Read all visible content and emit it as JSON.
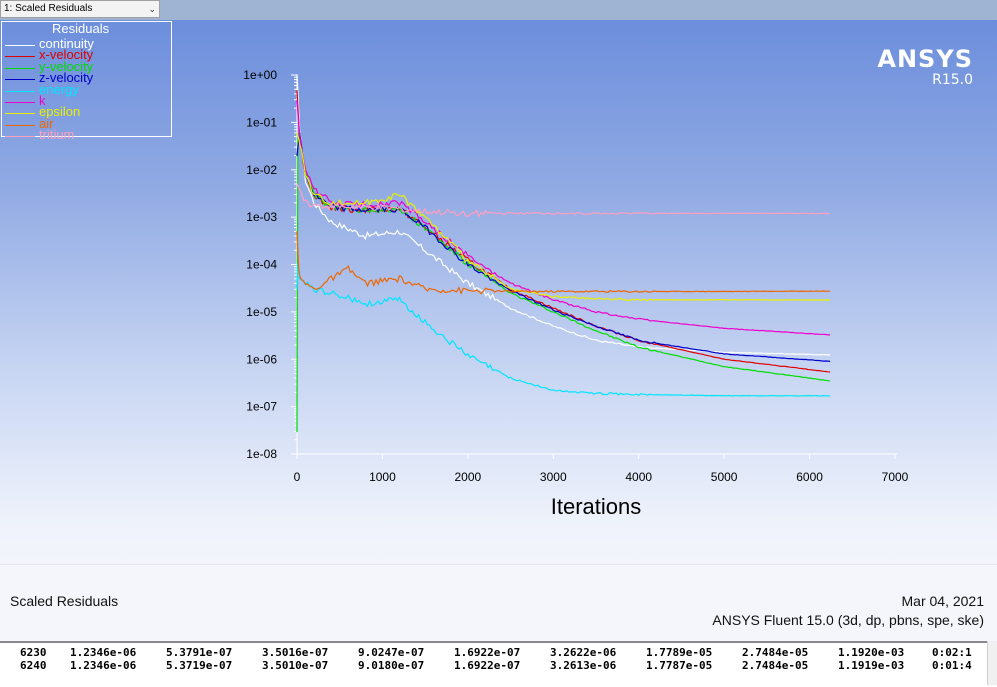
{
  "window": {
    "selector_label": "1: Scaled Residuals",
    "selector_chevron": "chevron-down-icon"
  },
  "brand": {
    "name": "ANSYS",
    "version": "R15.0"
  },
  "legend": {
    "title": "Residuals",
    "items": [
      {
        "label": "continuity",
        "color": "#ffffff"
      },
      {
        "label": "x-velocity",
        "color": "#e00000"
      },
      {
        "label": "y-velocity",
        "color": "#00dd00"
      },
      {
        "label": "z-velocity",
        "color": "#0000cc"
      },
      {
        "label": "energy",
        "color": "#00e5ff"
      },
      {
        "label": "k",
        "color": "#ee00cc"
      },
      {
        "label": "epsilon",
        "color": "#e8f000"
      },
      {
        "label": "air",
        "color": "#ee6600"
      },
      {
        "label": "tritium",
        "color": "#ff9fc0"
      }
    ]
  },
  "chart_data": {
    "type": "line",
    "title": "",
    "xlabel": "Iterations",
    "ylabel": "",
    "xlim": [
      0,
      7000
    ],
    "x_ticks": [
      "0",
      "1000",
      "2000",
      "3000",
      "4000",
      "5000",
      "6000",
      "7000"
    ],
    "y_scale": "log",
    "ylim": [
      1e-08,
      1
    ],
    "y_ticks": [
      "1e+00",
      "1e-01",
      "1e-02",
      "1e-03",
      "1e-04",
      "1e-05",
      "1e-06",
      "1e-07",
      "1e-08"
    ],
    "grid": false,
    "legend_position": "top-left",
    "series": [
      {
        "name": "continuity",
        "color": "#ffffff",
        "x": [
          0,
          30,
          100,
          200,
          400,
          800,
          1200,
          1500,
          2000,
          2500,
          3000,
          3500,
          4000,
          5000,
          6240
        ],
        "y": [
          1,
          0.08,
          0.006,
          0.002,
          0.0008,
          0.0004,
          0.0005,
          0.0002,
          4e-05,
          1.2e-05,
          5e-06,
          2.5e-06,
          1.8e-06,
          1.4e-06,
          1.2346e-06
        ]
      },
      {
        "name": "x-velocity",
        "color": "#e00000",
        "x": [
          0,
          30,
          100,
          200,
          400,
          800,
          1200,
          1500,
          2000,
          2500,
          3000,
          3500,
          4000,
          5000,
          6240
        ],
        "y": [
          0.5,
          0.05,
          0.008,
          0.003,
          0.0016,
          0.0014,
          0.0015,
          0.0006,
          0.00012,
          3e-05,
          1.2e-05,
          5e-06,
          2.5e-06,
          1e-06,
          5.3719e-07
        ]
      },
      {
        "name": "y-velocity",
        "color": "#00dd00",
        "x": [
          0,
          10,
          30,
          100,
          200,
          400,
          800,
          1200,
          1500,
          2000,
          2500,
          3000,
          3500,
          4000,
          5000,
          6240
        ],
        "y": [
          3e-08,
          0.06,
          0.05,
          0.008,
          0.003,
          0.0016,
          0.0014,
          0.0015,
          0.0006,
          0.0001,
          2.5e-05,
          1e-05,
          4e-06,
          1.8e-06,
          7e-07,
          3.501e-07
        ]
      },
      {
        "name": "z-velocity",
        "color": "#0000cc",
        "x": [
          0,
          30,
          100,
          200,
          400,
          800,
          1200,
          1500,
          2000,
          2500,
          3000,
          3500,
          4000,
          5000,
          6240
        ],
        "y": [
          0.02,
          0.06,
          0.008,
          0.003,
          0.0016,
          0.0014,
          0.0015,
          0.0006,
          0.0001,
          2.8e-05,
          1.1e-05,
          5e-06,
          2.5e-06,
          1.3e-06,
          9.018e-07
        ]
      },
      {
        "name": "energy",
        "color": "#00e5ff",
        "x": [
          0,
          10,
          30,
          100,
          200,
          400,
          800,
          1200,
          1500,
          2000,
          2500,
          3000,
          3500,
          4000,
          5000,
          6240
        ],
        "y": [
          3e-05,
          0.0001,
          5e-05,
          4e-05,
          3e-05,
          2.5e-05,
          1.5e-05,
          1.8e-05,
          6e-06,
          1.2e-06,
          4e-07,
          2.2e-07,
          1.9e-07,
          1.8e-07,
          1.7e-07,
          1.6922e-07
        ]
      },
      {
        "name": "k",
        "color": "#ee00cc",
        "x": [
          0,
          30,
          100,
          200,
          400,
          800,
          1200,
          1500,
          2000,
          2500,
          3000,
          3500,
          4000,
          5000,
          6240
        ],
        "y": [
          0.3,
          0.05,
          0.009,
          0.004,
          0.002,
          0.0018,
          0.002,
          0.0008,
          0.00015,
          4e-05,
          1.8e-05,
          1e-05,
          7e-06,
          4.5e-06,
          3.2613e-06
        ]
      },
      {
        "name": "epsilon",
        "color": "#e8f000",
        "x": [
          0,
          30,
          100,
          200,
          400,
          800,
          1200,
          1500,
          2000,
          2500,
          3000,
          3500,
          4000,
          5000,
          6240
        ],
        "y": [
          0.06,
          0.04,
          0.008,
          0.003,
          0.002,
          0.002,
          0.003,
          0.001,
          0.00012,
          3e-05,
          2.1e-05,
          1.9e-05,
          1.8e-05,
          1.8e-05,
          1.7787e-05
        ]
      },
      {
        "name": "air",
        "color": "#ee6600",
        "x": [
          0,
          10,
          30,
          100,
          200,
          400,
          600,
          800,
          1200,
          1500,
          2000,
          2500,
          3000,
          4000,
          5000,
          6240
        ],
        "y": [
          0.0005,
          0.0002,
          5e-05,
          4e-05,
          3e-05,
          5e-05,
          8e-05,
          4e-05,
          5e-05,
          3e-05,
          2.8e-05,
          2.7e-05,
          2.7e-05,
          2.7e-05,
          2.7e-05,
          2.7484e-05
        ]
      },
      {
        "name": "tritium",
        "color": "#ff9fc0",
        "x": [
          0,
          30,
          100,
          200,
          400,
          800,
          1200,
          1500,
          2000,
          3000,
          4000,
          5000,
          6240
        ],
        "y": [
          0.005,
          0.004,
          0.002,
          0.0018,
          0.0017,
          0.0016,
          0.0015,
          0.0013,
          0.0012,
          0.0012,
          0.0012,
          0.0012,
          0.0011919
        ]
      }
    ]
  },
  "footer": {
    "plot_name": "Scaled Residuals",
    "date": "Mar 04, 2021",
    "software": "ANSYS Fluent 15.0 (3d, dp, pbns, spe, ske)"
  },
  "console": {
    "rows": [
      {
        "iter": "6230",
        "values": [
          "1.2346e-06",
          "5.3791e-07",
          "3.5016e-07",
          "9.0247e-07",
          "1.6922e-07",
          "3.2622e-06",
          "1.7789e-05",
          "2.7484e-05",
          "1.1920e-03"
        ],
        "time": "0:02:1"
      },
      {
        "iter": "6240",
        "values": [
          "1.2346e-06",
          "5.3719e-07",
          "3.5010e-07",
          "9.0180e-07",
          "1.6922e-07",
          "3.2613e-06",
          "1.7787e-05",
          "2.7484e-05",
          "1.1919e-03"
        ],
        "time": "0:01:4"
      }
    ]
  }
}
